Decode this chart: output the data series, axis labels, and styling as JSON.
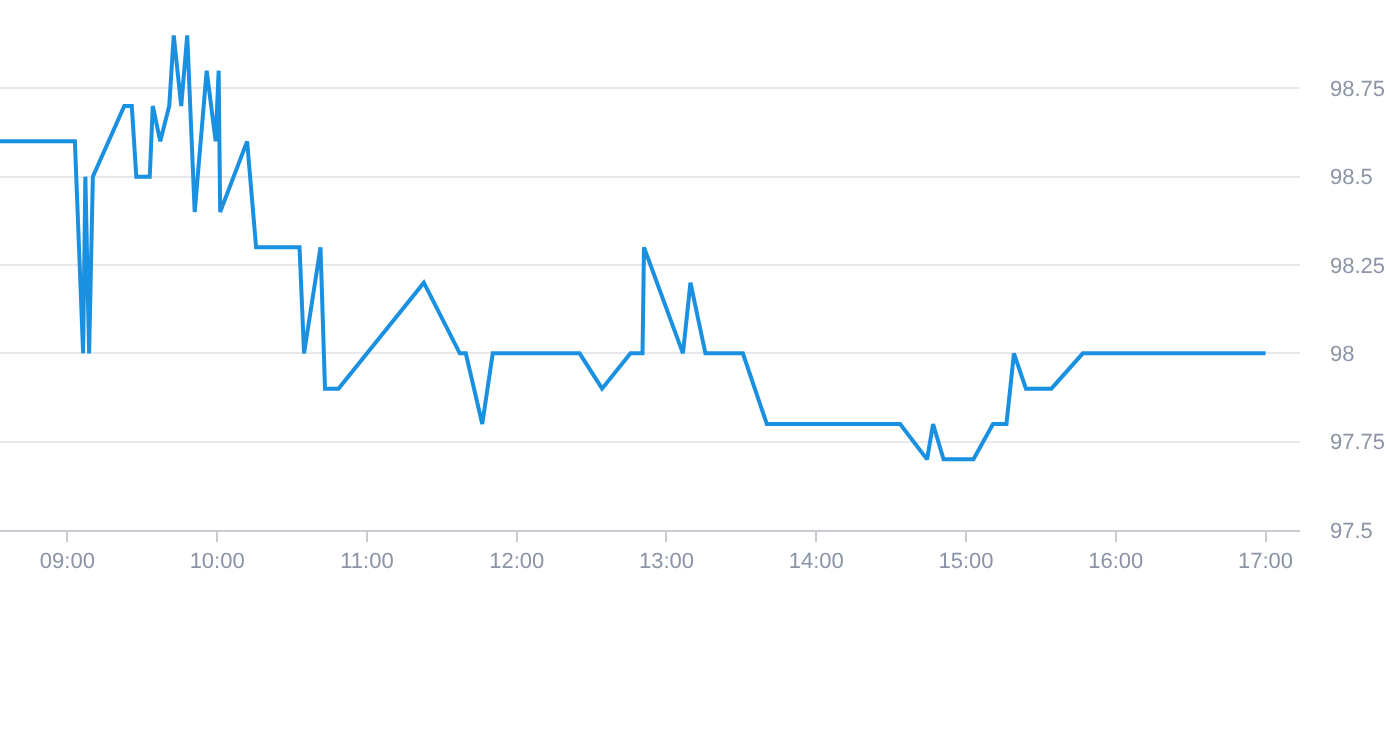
{
  "chart_data": {
    "type": "line",
    "x": [
      8.55,
      9.05,
      9.105,
      9.12,
      9.145,
      9.17,
      9.38,
      9.43,
      9.46,
      9.55,
      9.57,
      9.62,
      9.68,
      9.71,
      9.76,
      9.8,
      9.85,
      9.93,
      9.99,
      10.01,
      10.02,
      10.2,
      10.26,
      10.55,
      10.58,
      10.69,
      10.72,
      10.81,
      11.38,
      11.62,
      11.66,
      11.77,
      11.84,
      12.42,
      12.57,
      12.76,
      12.84,
      12.85,
      13.11,
      13.16,
      13.26,
      13.51,
      13.67,
      14.56,
      14.74,
      14.78,
      14.85,
      15.05,
      15.18,
      15.27,
      15.32,
      15.4,
      15.57,
      15.78,
      17.0
    ],
    "series": [
      {
        "color": "#1a90e0",
        "values": [
          98.6,
          98.6,
          98.0,
          98.5,
          98.0,
          98.5,
          98.7,
          98.7,
          98.5,
          98.5,
          98.7,
          98.6,
          98.7,
          98.9,
          98.7,
          98.9,
          98.4,
          98.8,
          98.6,
          98.8,
          98.4,
          98.6,
          98.3,
          98.3,
          98.0,
          98.3,
          97.9,
          97.9,
          98.2,
          98.0,
          98.0,
          97.8,
          98.0,
          98.0,
          97.9,
          98.0,
          98.0,
          98.3,
          98.0,
          98.2,
          98.0,
          98.0,
          97.8,
          97.8,
          97.7,
          97.8,
          97.7,
          97.7,
          97.8,
          97.8,
          98.0,
          97.9,
          97.9,
          98.0,
          98.0
        ]
      }
    ],
    "xlim": [
      8.55,
      17.23
    ],
    "xticks": [
      {
        "value": 9,
        "label": "09:00"
      },
      {
        "value": 10,
        "label": "10:00"
      },
      {
        "value": 11,
        "label": "11:00"
      },
      {
        "value": 12,
        "label": "12:00"
      },
      {
        "value": 13,
        "label": "13:00"
      },
      {
        "value": 14,
        "label": "14:00"
      },
      {
        "value": 15,
        "label": "15:00"
      },
      {
        "value": 16,
        "label": "16:00"
      },
      {
        "value": 17,
        "label": "17:00"
      }
    ],
    "ylim": [
      97.5,
      99.0
    ],
    "yticks": [
      97.5,
      97.75,
      98,
      98.25,
      98.5,
      98.75
    ],
    "grid": "y"
  }
}
